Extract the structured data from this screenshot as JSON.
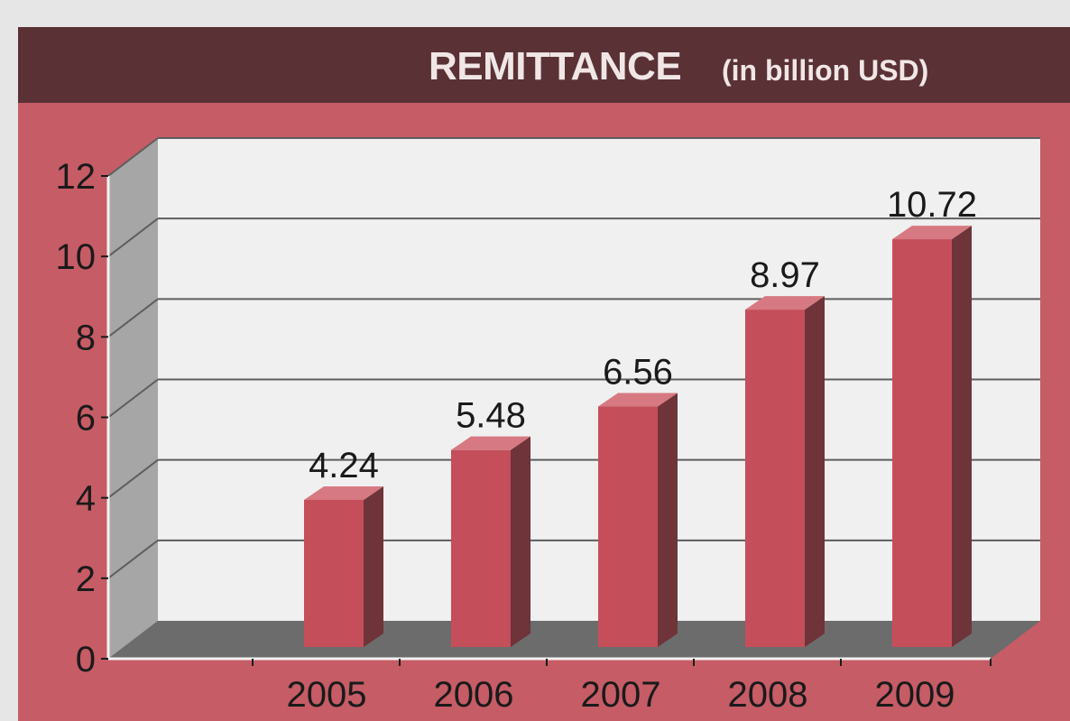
{
  "chart_data": {
    "type": "bar",
    "title": "REMITTANCE",
    "subtitle": "(in billion USD)",
    "xlabel": "",
    "ylabel": "",
    "categories": [
      "2005",
      "2006",
      "2007",
      "2008",
      "2009"
    ],
    "values": [
      4.24,
      5.48,
      6.56,
      8.97,
      10.72
    ],
    "value_labels": [
      "4.24",
      "5.48",
      "6.56",
      "8.97",
      "10.72"
    ],
    "ylim": [
      0,
      12
    ],
    "yticks": [
      0,
      2,
      4,
      6,
      8,
      10,
      12
    ],
    "grid": true,
    "style": "3d-column",
    "colors": {
      "background": "#c65c66",
      "header": "#5a3135",
      "bar_front": "#c44f5b",
      "bar_top": "#d77982",
      "bar_side": "#6e3439",
      "plot_back": "#f0f0f0",
      "plot_side_wall": "#a6a6a6",
      "plot_floor": "#6c6c6c"
    }
  }
}
